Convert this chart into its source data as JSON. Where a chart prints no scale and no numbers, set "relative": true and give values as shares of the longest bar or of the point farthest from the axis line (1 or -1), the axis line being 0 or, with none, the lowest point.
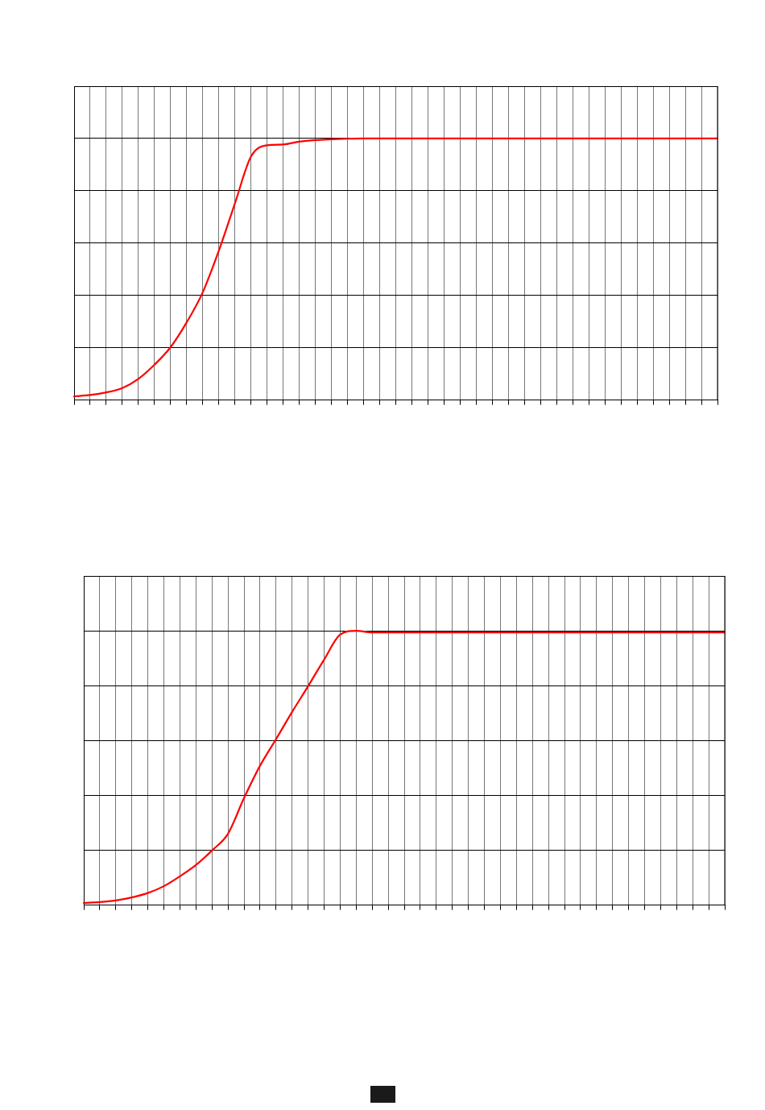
{
  "chart_data": [
    {
      "type": "line",
      "relative": true,
      "grid": true,
      "legend": false,
      "marker": "none",
      "line_style": "solid",
      "categories": [
        null,
        null,
        null,
        null,
        null,
        null,
        null,
        null,
        null,
        null,
        null,
        null,
        null,
        null,
        null,
        null,
        null,
        null,
        null,
        null,
        null,
        null,
        null,
        null,
        null,
        null,
        null,
        null,
        null,
        null,
        null,
        null,
        null,
        null,
        null,
        null,
        null,
        null,
        null,
        null,
        null
      ],
      "series": [
        {
          "color": "#ff0000",
          "values": [
            0.014,
            0.019,
            0.029,
            0.046,
            0.081,
            0.135,
            0.202,
            0.297,
            0.412,
            0.571,
            0.752,
            0.931,
            0.974,
            0.977,
            0.988,
            0.994,
            0.997,
            0.999,
            1,
            1,
            1,
            1,
            1,
            1,
            1,
            1,
            1,
            1,
            1,
            1,
            1,
            1,
            1,
            1,
            1,
            1,
            1,
            1,
            1,
            1,
            1
          ]
        }
      ]
    },
    {
      "type": "line",
      "relative": true,
      "grid": true,
      "legend": false,
      "marker": "none",
      "line_style": "solid",
      "categories": [
        null,
        null,
        null,
        null,
        null,
        null,
        null,
        null,
        null,
        null,
        null,
        null,
        null,
        null,
        null,
        null,
        null,
        null,
        null,
        null,
        null,
        null,
        null,
        null,
        null,
        null,
        null,
        null,
        null,
        null,
        null,
        null,
        null,
        null,
        null,
        null,
        null,
        null,
        null,
        null,
        null
      ],
      "series": [
        {
          "color": "#ff0000",
          "values": [
            0.008,
            0.011,
            0.017,
            0.028,
            0.044,
            0.069,
            0.105,
            0.146,
            0.199,
            0.26,
            0.39,
            0.508,
            0.605,
            0.704,
            0.798,
            0.895,
            0.986,
            1,
            0.994,
            0.994,
            0.994,
            0.994,
            0.994,
            0.994,
            0.994,
            0.994,
            0.994,
            0.994,
            0.994,
            0.994,
            0.994,
            0.994,
            0.994,
            0.994,
            0.994,
            0.994,
            0.994,
            0.994,
            0.994,
            0.994,
            0.994
          ]
        }
      ]
    }
  ]
}
